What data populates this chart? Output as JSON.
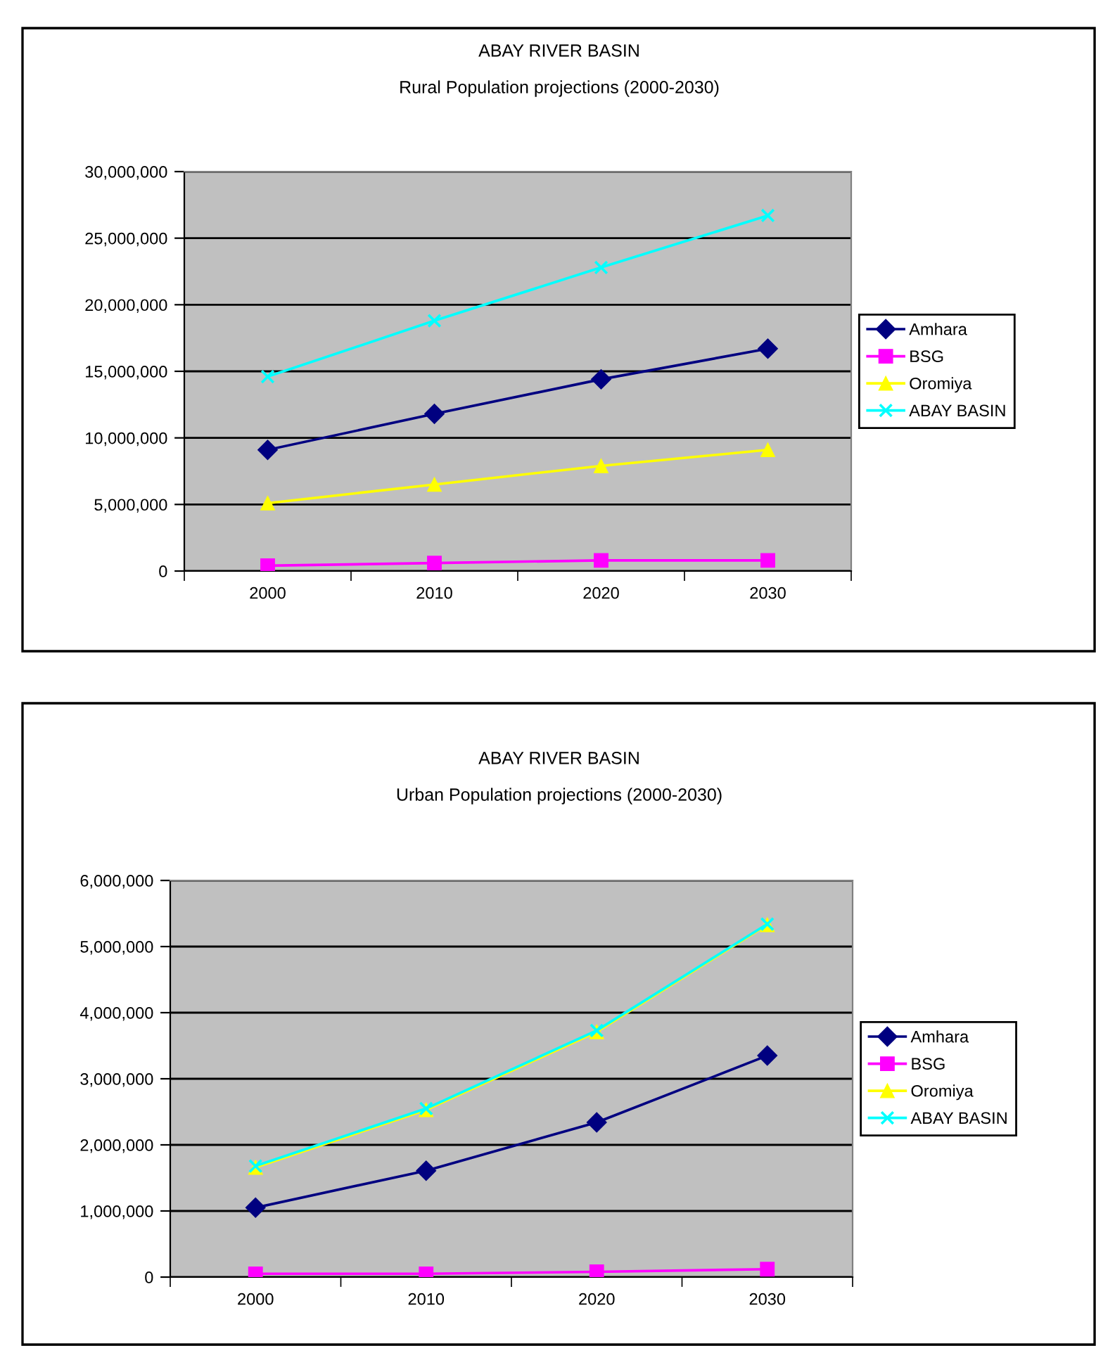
{
  "chart_data": [
    {
      "type": "line",
      "title": "ABAY RIVER BASIN",
      "subtitle": "Rural Population projections (2000-2030)",
      "categories": [
        "2000",
        "2010",
        "2020",
        "2030"
      ],
      "series": [
        {
          "name": "Amhara",
          "color": "#000080",
          "marker": "diamond",
          "values": [
            9100000,
            11800000,
            14400000,
            16700000
          ]
        },
        {
          "name": "BSG",
          "color": "#ff00ff",
          "marker": "square",
          "values": [
            400000,
            600000,
            800000,
            800000
          ]
        },
        {
          "name": "Oromiya",
          "color": "#ffff00",
          "marker": "triangle",
          "values": [
            5100000,
            6500000,
            7900000,
            9100000
          ]
        },
        {
          "name": "ABAY BASIN",
          "color": "#00ffff",
          "marker": "cross",
          "values": [
            14600000,
            18800000,
            22800000,
            26700000
          ]
        }
      ],
      "ylim": [
        0,
        30000000
      ],
      "yticks": [
        0,
        {
          "value": 5000000,
          "label": "5,000,000"
        },
        {
          "value": 10000000,
          "label": "10,000,000"
        },
        {
          "value": 15000000,
          "label": "15,000,000"
        },
        {
          "value": 20000000,
          "label": "20,000,000"
        },
        {
          "value": 25000000,
          "label": "25,000,000"
        },
        {
          "value": 30000000,
          "label": "30,000,000"
        }
      ],
      "grid": "y",
      "legend": "right",
      "line_style": "solid"
    },
    {
      "type": "line",
      "title": "ABAY RIVER BASIN",
      "subtitle": "Urban Population projections (2000-2030)",
      "categories": [
        "2000",
        "2010",
        "2020",
        "2030"
      ],
      "series": [
        {
          "name": "Amhara",
          "color": "#000080",
          "marker": "diamond",
          "values": [
            1050000,
            1610000,
            2340000,
            3350000
          ]
        },
        {
          "name": "BSG",
          "color": "#ff00ff",
          "marker": "square",
          "values": [
            50000,
            50000,
            80000,
            120000
          ]
        },
        {
          "name": "Oromiya",
          "color": "#ffff00",
          "marker": "triangle",
          "values": [
            1660000,
            2530000,
            3710000,
            5330000
          ]
        },
        {
          "name": "ABAY BASIN",
          "color": "#00ffff",
          "marker": "cross",
          "values": [
            1680000,
            2550000,
            3730000,
            5340000
          ]
        }
      ],
      "ylim": [
        0,
        6000000
      ],
      "yticks": [
        0,
        {
          "value": 1000000,
          "label": "1,000,000"
        },
        {
          "value": 2000000,
          "label": "2,000,000"
        },
        {
          "value": 3000000,
          "label": "3,000,000"
        },
        {
          "value": 4000000,
          "label": "4,000,000"
        },
        {
          "value": 5000000,
          "label": "5,000,000"
        },
        {
          "value": 6000000,
          "label": "6,000,000"
        }
      ],
      "grid": "y",
      "legend": "right",
      "line_style": "solid"
    }
  ]
}
